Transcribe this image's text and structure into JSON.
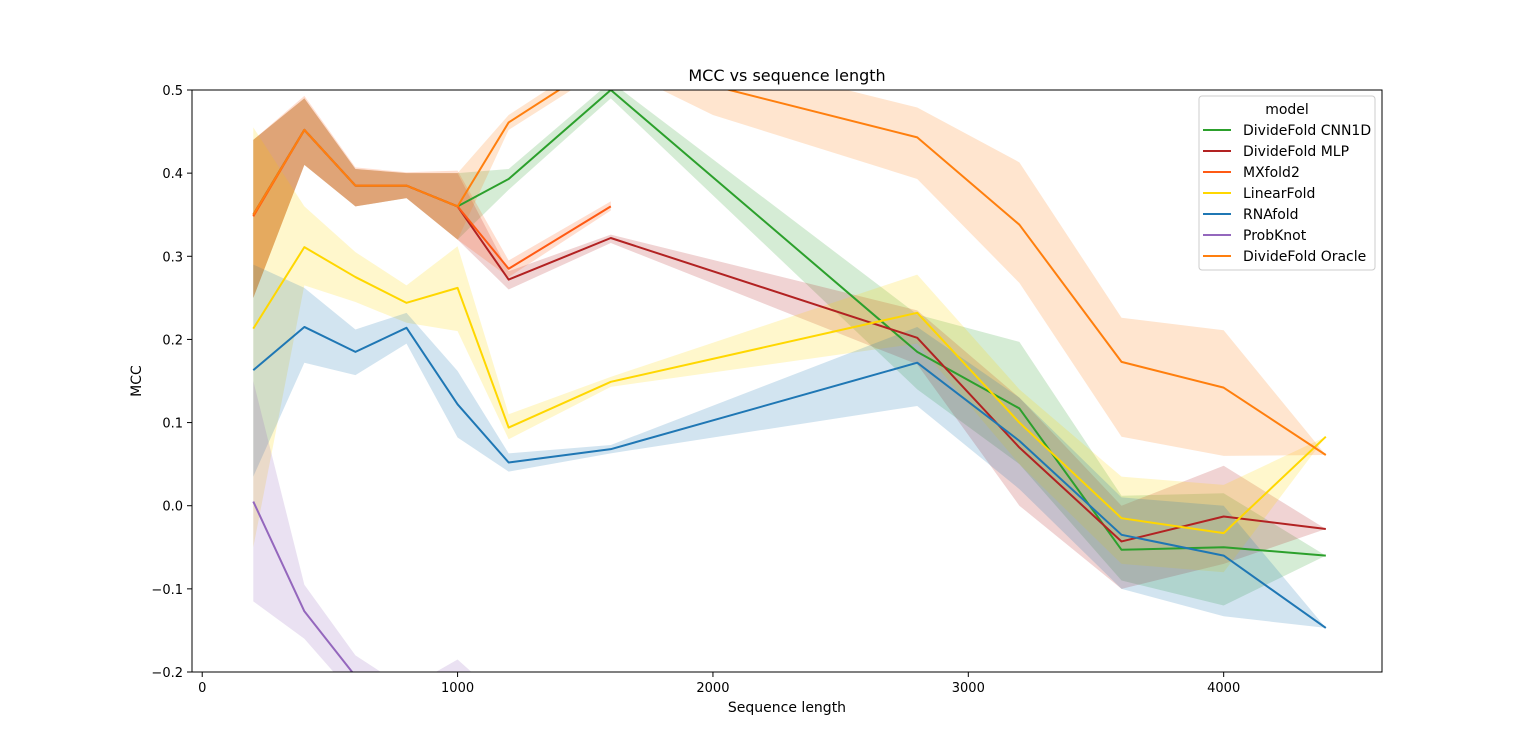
{
  "chart_data": {
    "type": "line",
    "title": "MCC vs sequence length",
    "xlabel": "Sequence length",
    "ylabel": "MCC",
    "xlim": [
      -40,
      4620
    ],
    "ylim": [
      -0.2,
      0.5
    ],
    "x_ticks": [
      0,
      1000,
      2000,
      3000,
      4000
    ],
    "x_tick_labels": [
      "0",
      "1000",
      "2000",
      "3000",
      "4000"
    ],
    "y_ticks": [
      -0.2,
      -0.1,
      0.0,
      0.1,
      0.2,
      0.3,
      0.4,
      0.5
    ],
    "y_tick_labels": [
      "−0.2",
      "−0.1",
      "0.0",
      "0.1",
      "0.2",
      "0.3",
      "0.4",
      "0.5"
    ],
    "grid": false,
    "legend": {
      "title": "model",
      "position": "top-right"
    },
    "series": [
      {
        "name": "DivideFold CNN1D",
        "color": "#2ca02c",
        "x": [
          200,
          400,
          600,
          800,
          1000,
          1200,
          1600,
          2800,
          3200,
          3600,
          4000,
          4400
        ],
        "y": [
          0.35,
          0.452,
          0.385,
          0.385,
          0.36,
          0.393,
          0.5,
          0.185,
          0.117,
          -0.053,
          -0.05,
          -0.06
        ],
        "lower": [
          0.25,
          0.41,
          0.36,
          0.37,
          0.32,
          0.38,
          0.49,
          0.14,
          0.05,
          -0.09,
          -0.12,
          -0.06
        ],
        "upper": [
          0.44,
          0.49,
          0.405,
          0.4,
          0.4,
          0.405,
          0.51,
          0.23,
          0.197,
          0.012,
          0.015,
          -0.06
        ]
      },
      {
        "name": "DivideFold MLP",
        "color": "#b22222",
        "x": [
          200,
          400,
          600,
          800,
          1000,
          1200,
          1600,
          2800,
          3200,
          3600,
          4000,
          4400
        ],
        "y": [
          0.35,
          0.452,
          0.385,
          0.385,
          0.36,
          0.272,
          0.322,
          0.202,
          0.07,
          -0.043,
          -0.013,
          -0.028
        ],
        "lower": [
          0.25,
          0.41,
          0.36,
          0.37,
          0.32,
          0.26,
          0.316,
          0.17,
          0.0,
          -0.1,
          -0.07,
          -0.028
        ],
        "upper": [
          0.44,
          0.49,
          0.405,
          0.4,
          0.4,
          0.282,
          0.326,
          0.235,
          0.13,
          0.0,
          0.048,
          -0.028
        ]
      },
      {
        "name": "MXfold2",
        "color": "#ff5a14",
        "x": [
          200,
          400,
          600,
          800,
          1000,
          1200,
          1600
        ],
        "y": [
          0.348,
          0.452,
          0.385,
          0.385,
          0.36,
          0.285,
          0.36
        ],
        "lower": [
          0.25,
          0.41,
          0.36,
          0.37,
          0.32,
          0.275,
          0.355
        ],
        "upper": [
          0.44,
          0.493,
          0.407,
          0.401,
          0.403,
          0.295,
          0.366
        ]
      },
      {
        "name": "LinearFold",
        "color": "#ffd700",
        "x": [
          200,
          400,
          600,
          800,
          1000,
          1200,
          1600,
          2800,
          3200,
          3600,
          4000,
          4400
        ],
        "y": [
          0.213,
          0.311,
          0.275,
          0.244,
          0.262,
          0.094,
          0.149,
          0.232,
          0.1,
          -0.015,
          -0.033,
          0.083
        ],
        "lower": [
          -0.05,
          0.265,
          0.245,
          0.22,
          0.21,
          0.08,
          0.143,
          0.195,
          0.05,
          -0.07,
          -0.08,
          0.083
        ],
        "upper": [
          0.455,
          0.36,
          0.305,
          0.265,
          0.312,
          0.11,
          0.155,
          0.278,
          0.14,
          0.035,
          0.025,
          0.083
        ]
      },
      {
        "name": "RNAfold",
        "color": "#1f77b4",
        "x": [
          200,
          400,
          600,
          800,
          1000,
          1200,
          1600,
          2800,
          3200,
          3600,
          4000,
          4400
        ],
        "y": [
          0.163,
          0.215,
          0.185,
          0.214,
          0.122,
          0.052,
          0.068,
          0.172,
          0.078,
          -0.035,
          -0.06,
          -0.147
        ],
        "lower": [
          0.035,
          0.172,
          0.157,
          0.195,
          0.082,
          0.041,
          0.063,
          0.12,
          0.02,
          -0.1,
          -0.133,
          -0.147
        ],
        "upper": [
          0.29,
          0.262,
          0.212,
          0.232,
          0.162,
          0.063,
          0.073,
          0.215,
          0.13,
          0.01,
          0.0,
          -0.147
        ]
      },
      {
        "name": "ProbKnot",
        "color": "#9467bd",
        "x": [
          200,
          400,
          600,
          800,
          1000,
          1200
        ],
        "y": [
          0.005,
          -0.127,
          -0.205,
          -0.245,
          -0.205,
          -0.26
        ],
        "lower": [
          -0.115,
          -0.16,
          -0.23,
          -0.27,
          -0.23,
          -0.28
        ],
        "upper": [
          0.15,
          -0.095,
          -0.18,
          -0.22,
          -0.185,
          -0.24
        ]
      },
      {
        "name": "DivideFold Oracle",
        "color": "#ff7f0e",
        "x": [
          200,
          400,
          600,
          800,
          1000,
          1200,
          1600,
          2000,
          2800,
          3200,
          3600,
          4000,
          4400
        ],
        "y": [
          0.35,
          0.452,
          0.385,
          0.385,
          0.36,
          0.461,
          0.54,
          0.505,
          0.443,
          0.338,
          0.173,
          0.142,
          0.061
        ],
        "lower": [
          0.25,
          0.41,
          0.36,
          0.37,
          0.32,
          0.452,
          0.53,
          0.47,
          0.393,
          0.268,
          0.083,
          0.06,
          0.061
        ],
        "upper": [
          0.44,
          0.49,
          0.405,
          0.4,
          0.4,
          0.47,
          0.55,
          0.54,
          0.479,
          0.413,
          0.226,
          0.211,
          0.061
        ]
      }
    ]
  }
}
